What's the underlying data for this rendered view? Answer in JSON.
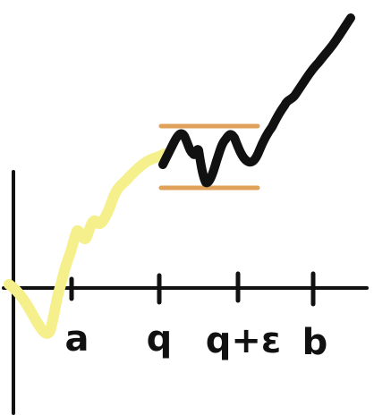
{
  "colors": {
    "background": "#ffffff",
    "axis": "#111111",
    "early_path": "#f5ef8c",
    "late_path": "#111111",
    "band": "#e0a15a"
  },
  "x_ticks": [
    {
      "label": "a"
    },
    {
      "label": "q"
    },
    {
      "label": "q+ε"
    },
    {
      "label": "b"
    }
  ]
}
